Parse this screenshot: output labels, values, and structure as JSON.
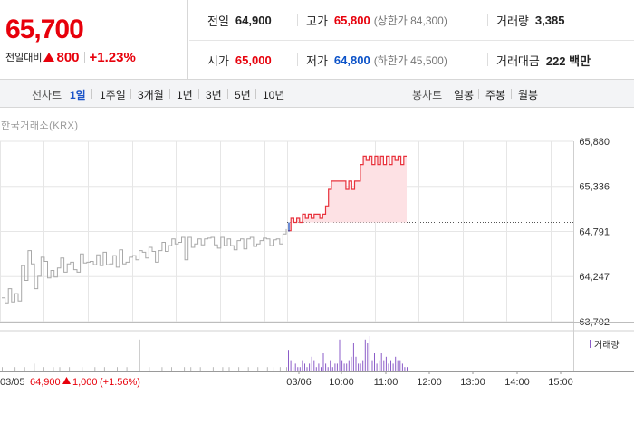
{
  "summary": {
    "price": "65,700",
    "change_label": "전일대비",
    "change_amount": "800",
    "change_rate": "+1.23%",
    "prev_close": {
      "label": "전일",
      "value": "64,900"
    },
    "high": {
      "label": "고가",
      "value": "65,800",
      "limit": "(상한가 84,300)"
    },
    "volume": {
      "label": "거래량",
      "value": "3,385"
    },
    "open": {
      "label": "시가",
      "value": "65,000"
    },
    "low": {
      "label": "저가",
      "value": "64,800",
      "limit": "(하한가 45,500)"
    },
    "amount": {
      "label": "거래대금",
      "value": "222 백만"
    }
  },
  "tabs": {
    "line_label": "선차트",
    "line_periods": [
      "1일",
      "1주일",
      "3개월",
      "1년",
      "3년",
      "5년",
      "10년"
    ],
    "active_period": "1일",
    "candle_label": "봉차트",
    "candle_periods": [
      "일봉",
      "주봉",
      "월봉"
    ]
  },
  "chart": {
    "source": "한국거래소(KRX)",
    "volume_legend": "거래량",
    "prev_day_footer": {
      "date": "03/05",
      "price": "64,900",
      "change": "1,000",
      "rate": "(+1.56%)"
    }
  },
  "colors": {
    "up": "#e7000b",
    "down": "#0b52c8",
    "today_line": "#e8323c",
    "today_fill": "#fde1e4",
    "prev_line": "#a8a8a8",
    "volume_bar": "#8b5cc8",
    "grid": "#e6e6e6"
  },
  "chart_data": {
    "type": "line",
    "yticks": [
      65880,
      65336,
      64791,
      64247,
      63702
    ],
    "ylim": [
      63702,
      65880
    ],
    "xticks": [
      "03/05",
      "03/06",
      "10:00",
      "11:00",
      "12:00",
      "13:00",
      "14:00",
      "15:00"
    ],
    "reference_price": 64900,
    "series": [
      {
        "values": [
          63990,
          63930,
          64100,
          63940,
          64040,
          63950,
          64380,
          64200,
          64560,
          64400,
          64100,
          64250,
          64480,
          64430,
          64230,
          64320,
          64240,
          64350,
          64470,
          64300,
          64400,
          64420,
          64330,
          64300,
          64520,
          64410,
          64420,
          64430,
          64390,
          64510,
          64380,
          64540,
          64390,
          64400,
          64500,
          64360,
          64570,
          64400,
          64420,
          64480,
          64500,
          64450,
          64560,
          64540,
          64470,
          64600,
          64550,
          64420,
          64560,
          64660,
          64550,
          64620,
          64700,
          64640,
          64660,
          64720,
          64450,
          64720,
          64600,
          64640,
          64700,
          64630,
          64700,
          64710,
          64720,
          64630,
          64590,
          64720,
          64620,
          64700,
          64620,
          64570,
          64680,
          64700,
          64580,
          64700,
          64720,
          64610,
          64640,
          64680,
          64710,
          64700,
          64620,
          64690,
          64700,
          64640,
          64760,
          64820
        ]
      },
      {
        "values": [
          64800,
          64950,
          64900,
          64950,
          64900,
          65000,
          64950,
          65000,
          64950,
          65000,
          65000,
          64950,
          65000,
          65100,
          65300,
          65400,
          65400,
          65400,
          65400,
          65400,
          65300,
          65400,
          65300,
          65400,
          65400,
          65600,
          65700,
          65650,
          65700,
          65600,
          65700,
          65600,
          65700,
          65600,
          65700,
          65600,
          65700,
          65650,
          65700,
          65600,
          65700,
          65700
        ]
      }
    ],
    "volume": {
      "prev_day": [
        1,
        0,
        0,
        0,
        1,
        0,
        0,
        1,
        0,
        0,
        2,
        0,
        0,
        1,
        0,
        0,
        1,
        0,
        1,
        0,
        0,
        1,
        0,
        0,
        0,
        1,
        0,
        0,
        0,
        1,
        0,
        0,
        1,
        0,
        0,
        0,
        1,
        0,
        0,
        1,
        0,
        0,
        0,
        9,
        0,
        0,
        1,
        0,
        0,
        0,
        1,
        0,
        0,
        1,
        0,
        0,
        0,
        1,
        0,
        1,
        0,
        0,
        1,
        0,
        0,
        0,
        1,
        0,
        0,
        1,
        0,
        1,
        0,
        0,
        1,
        0,
        0,
        1,
        0,
        0,
        1,
        0,
        0,
        1,
        0,
        1,
        0,
        1,
        0,
        1
      ],
      "today": [
        6,
        3,
        1,
        2,
        1,
        1,
        3,
        2,
        1,
        2,
        4,
        3,
        1,
        2,
        1,
        5,
        2,
        1,
        3,
        1,
        2,
        2,
        9,
        3,
        2,
        2,
        3,
        4,
        8,
        4,
        2,
        2,
        3,
        9,
        8,
        10,
        3,
        5,
        2,
        3,
        5,
        3,
        4,
        2,
        3,
        2,
        4,
        3,
        3,
        2,
        1,
        1
      ]
    }
  }
}
